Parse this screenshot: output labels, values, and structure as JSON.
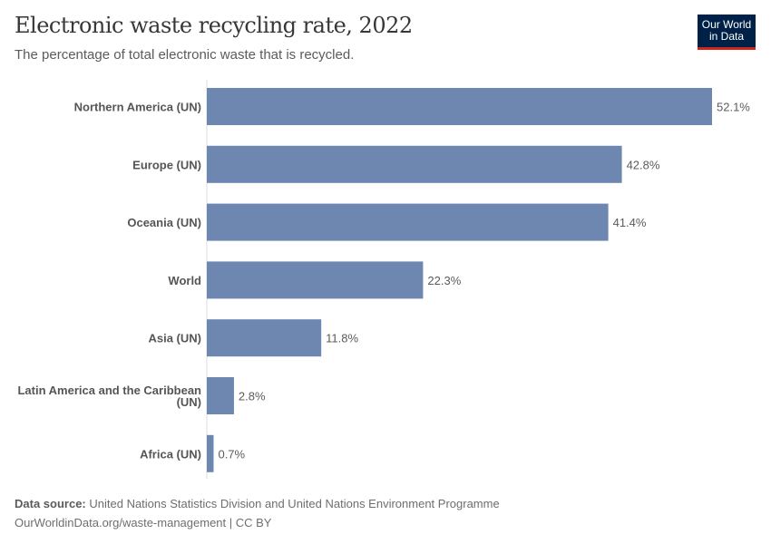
{
  "header": {
    "title": "Electronic waste recycling rate, 2022",
    "subtitle": "The percentage of total electronic waste that is recycled.",
    "logo": "Our World in Data"
  },
  "footer": {
    "source_label": "Data source:",
    "source_text": "United Nations Statistics Division and United Nations Environment Programme",
    "url_license": "OurWorldinData.org/waste-management | CC BY"
  },
  "chart_data": {
    "type": "bar",
    "orientation": "horizontal",
    "unit": "%",
    "categories": [
      [
        "Northern America (UN)"
      ],
      [
        "Europe (UN)"
      ],
      [
        "Oceania (UN)"
      ],
      [
        "World"
      ],
      [
        "Asia (UN)"
      ],
      [
        "Latin America and the Caribbean",
        "(UN)"
      ],
      [
        "Africa (UN)"
      ]
    ],
    "values": [
      52.1,
      42.8,
      41.4,
      22.3,
      11.8,
      2.8,
      0.7
    ],
    "value_labels": [
      "52.1%",
      "42.8%",
      "41.4%",
      "22.3%",
      "11.8%",
      "2.8%",
      "0.7%"
    ],
    "xlim": [
      0,
      52.1
    ],
    "grid": false,
    "bar_color": "#6d87b0"
  }
}
